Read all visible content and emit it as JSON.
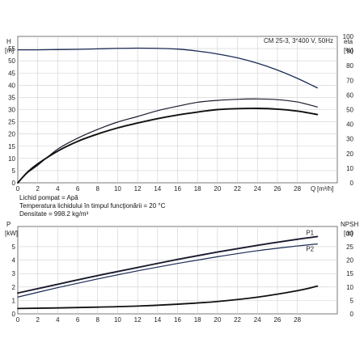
{
  "chart_data": [
    {
      "type": "line",
      "title": "CM 25-3, 3*400 V, 50Hz",
      "ylabel_left": "H",
      "ylabel_left_unit": "[m]",
      "ylabel_right": "eta",
      "ylabel_right_unit": "[%]",
      "xlabel": "Q",
      "xlabel_unit": "[m³/h]",
      "xlim": [
        0,
        32
      ],
      "ylim_left": [
        0,
        60
      ],
      "ylim_right": [
        0,
        100
      ],
      "x_ticks": [
        "0",
        "2",
        "4",
        "6",
        "8",
        "10",
        "12",
        "14",
        "16",
        "18",
        "20",
        "22",
        "24",
        "26",
        "28"
      ],
      "y_ticks_left": [
        "0",
        "5",
        "10",
        "15",
        "20",
        "25",
        "30",
        "35",
        "40",
        "45",
        "50",
        "55"
      ],
      "y_ticks_right": [
        "0",
        "10",
        "20",
        "30",
        "40",
        "50",
        "60",
        "70",
        "80",
        "90",
        "100"
      ],
      "grid": true,
      "series": [
        {
          "axis": "left",
          "x": [
            0,
            2,
            4,
            6,
            8,
            10,
            12,
            14,
            16,
            18,
            20,
            22,
            24,
            26,
            28,
            30
          ],
          "values": [
            54.5,
            54.5,
            54.6,
            54.7,
            54.9,
            55.1,
            55.2,
            55.1,
            54.8,
            54.0,
            52.8,
            51.2,
            49.0,
            46.2,
            42.8,
            38.9
          ]
        },
        {
          "axis": "right",
          "x": [
            0,
            1,
            2,
            4,
            6,
            8,
            10,
            12,
            14,
            16,
            18,
            20,
            22,
            24,
            26,
            28,
            30
          ],
          "values": [
            0,
            7,
            12,
            23,
            30.5,
            36.5,
            41.5,
            45.3,
            49.3,
            52.3,
            55.0,
            56.3,
            57.0,
            57.3,
            56.8,
            55.2,
            51.8
          ]
        },
        {
          "axis": "left",
          "x": [
            0,
            1,
            2,
            4,
            6,
            8,
            10,
            12,
            14,
            16,
            18,
            20,
            22,
            24,
            26,
            28,
            30
          ],
          "values": [
            0,
            4.5,
            7.8,
            13.0,
            17.0,
            20.0,
            22.5,
            24.5,
            26.3,
            27.8,
            29.0,
            30.0,
            30.4,
            30.5,
            30.2,
            29.4,
            28.0
          ]
        }
      ],
      "info_lines": [
        "Lichid pompat = Apă",
        "Temperatura lichidului în timpul funcţionării = 20 °C",
        "Densitate = 998.2 kg/m³"
      ]
    },
    {
      "type": "line",
      "ylabel_left": "P",
      "ylabel_left_unit": "[kW]",
      "ylabel_right": "NPSH",
      "ylabel_right_unit": "[m]",
      "xlim": [
        0,
        32
      ],
      "ylim_left": [
        0,
        6.5
      ],
      "ylim_right": [
        0,
        32.5
      ],
      "x_ticks": [
        "0",
        "2",
        "4",
        "6",
        "8",
        "10",
        "12",
        "14",
        "16",
        "18",
        "20",
        "22",
        "24",
        "26",
        "28"
      ],
      "y_ticks_left": [
        "0",
        "1",
        "2",
        "3",
        "4",
        "5"
      ],
      "y_ticks_right": [
        "0",
        "5",
        "10",
        "15",
        "20",
        "25",
        "30"
      ],
      "grid": true,
      "series": [
        {
          "name": "P1",
          "axis": "left",
          "x": [
            0,
            4,
            8,
            12,
            16,
            20,
            24,
            28,
            30
          ],
          "values": [
            1.55,
            2.2,
            2.85,
            3.45,
            4.05,
            4.6,
            5.1,
            5.55,
            5.75
          ]
        },
        {
          "name": "P2",
          "axis": "left",
          "x": [
            0,
            4,
            8,
            12,
            16,
            20,
            24,
            28,
            30
          ],
          "values": [
            1.25,
            1.95,
            2.6,
            3.2,
            3.75,
            4.25,
            4.7,
            5.05,
            5.2
          ]
        },
        {
          "axis": "right",
          "x": [
            0,
            4,
            8,
            12,
            16,
            20,
            24,
            28,
            30
          ],
          "values": [
            2.0,
            2.2,
            2.5,
            2.9,
            3.6,
            4.6,
            6.2,
            8.6,
            10.3
          ]
        }
      ]
    }
  ]
}
